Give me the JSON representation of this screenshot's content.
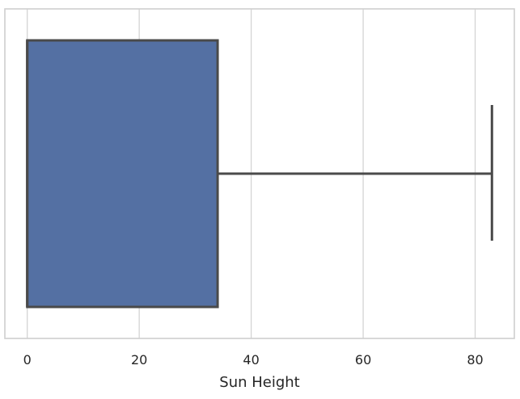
{
  "chart_data": {
    "type": "boxplot",
    "orientation": "horizontal",
    "xlabel": "Sun Height",
    "xlim": [
      -4,
      87
    ],
    "xticks": [
      0,
      20,
      40,
      60,
      80
    ],
    "grid": "x",
    "box": {
      "min": 0,
      "q1": 0,
      "median": 0,
      "q3": 34,
      "max": 83,
      "fill": "#5470A3",
      "edge": "#4A4A4A"
    },
    "colors": {
      "grid": "#D4D4D4",
      "frame": "#CFCFCF",
      "text": "#262626"
    }
  }
}
